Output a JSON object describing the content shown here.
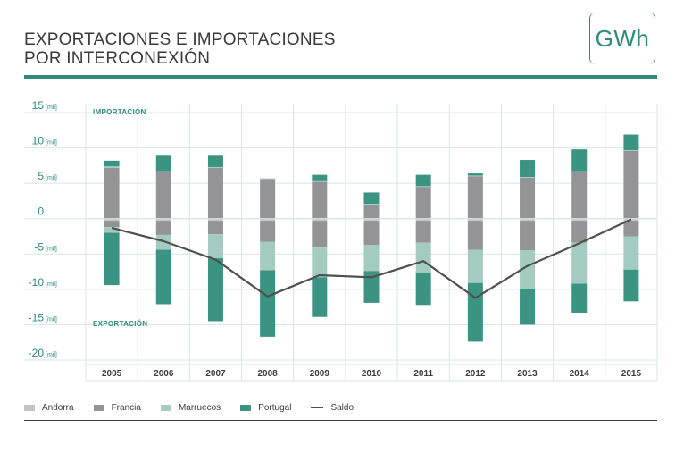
{
  "title": {
    "line1": "EXPORTACIONES E IMPORTACIONES",
    "line2": "POR INTERCONEXIÓN"
  },
  "unit_badge": "GWh",
  "chart_data": {
    "type": "bar",
    "stacked": true,
    "categories": [
      "2005",
      "2006",
      "2007",
      "2008",
      "2009",
      "2010",
      "2011",
      "2012",
      "2013",
      "2014",
      "2015"
    ],
    "y_ticks": [
      {
        "value": 15,
        "label": "15",
        "unit": "[mil]"
      },
      {
        "value": 10,
        "label": "10",
        "unit": "[mil]"
      },
      {
        "value": 5,
        "label": "5",
        "unit": "[mil]"
      },
      {
        "value": 0,
        "label": "0",
        "unit": ""
      },
      {
        "value": -5,
        "label": "-5",
        "unit": "[mil]"
      },
      {
        "value": -10,
        "label": "-10",
        "unit": "[mil]"
      },
      {
        "value": -15,
        "label": "-15",
        "unit": "[mil]"
      },
      {
        "value": -20,
        "label": "-20",
        "unit": "[mil]"
      }
    ],
    "ylim": [
      -20,
      15
    ],
    "grid": true,
    "annotations": {
      "import": "IMPORTACIÓN",
      "export": "EXPORTACIÓN"
    },
    "series": [
      {
        "name": "Andorra",
        "color": "#c3c4c5",
        "import": [
          0,
          0,
          0,
          0,
          0,
          0,
          0,
          0,
          0,
          0,
          0
        ],
        "export": [
          -0.3,
          -0.3,
          -0.3,
          -0.3,
          -0.3,
          -0.3,
          -0.3,
          -0.3,
          -0.3,
          -0.3,
          -0.3
        ]
      },
      {
        "name": "Francia",
        "color": "#949496",
        "import": [
          7.2,
          6.6,
          7.2,
          5.6,
          5.2,
          2.0,
          4.5,
          6.0,
          5.8,
          6.6,
          9.6
        ],
        "export": [
          -0.9,
          -2.0,
          -1.9,
          -3.0,
          -3.8,
          -3.4,
          -3.1,
          -4.1,
          -4.2,
          -3.1,
          -2.2
        ]
      },
      {
        "name": "Marruecos",
        "color": "#a3cbc0",
        "import": [
          0.2,
          0.1,
          0.1,
          0.1,
          0.1,
          0.1,
          0.1,
          0.1,
          0.1,
          0.1,
          0.1
        ],
        "export": [
          -0.8,
          -2.1,
          -3.4,
          -4.0,
          -4.2,
          -3.7,
          -4.2,
          -4.7,
          -5.4,
          -5.8,
          -4.7
        ]
      },
      {
        "name": "Portugal",
        "color": "#3b9382",
        "import": [
          0.8,
          2.2,
          1.6,
          0,
          0.9,
          1.6,
          1.6,
          0.3,
          2.4,
          3.1,
          2.2
        ],
        "export": [
          -7.4,
          -7.7,
          -8.9,
          -9.4,
          -5.6,
          -4.5,
          -4.6,
          -8.3,
          -5.1,
          -4.1,
          -4.5
        ]
      }
    ],
    "line_series": {
      "name": "Saldo",
      "color": "#505050",
      "values": [
        -1.3,
        -3.2,
        -5.8,
        -11.0,
        -8.0,
        -8.3,
        -6.0,
        -11.2,
        -6.7,
        -3.5,
        -0.1
      ]
    }
  }
}
